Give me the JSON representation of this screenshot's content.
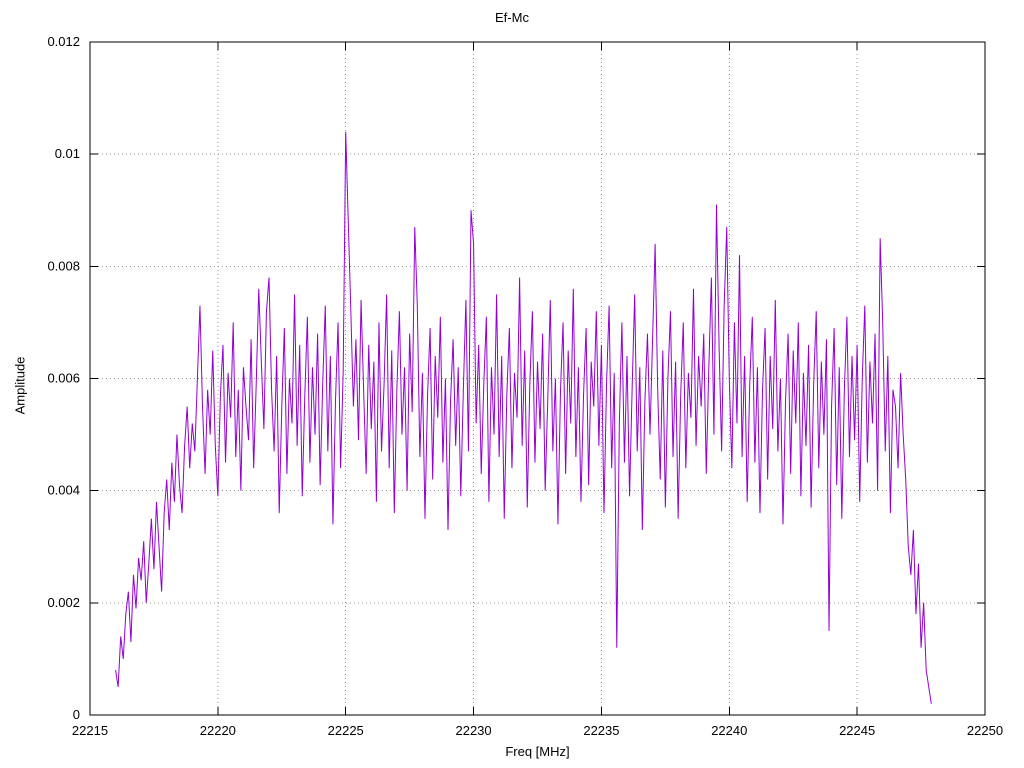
{
  "chart_data": {
    "type": "line",
    "title": "Ef-Mc",
    "xlabel": "Freq [MHz]",
    "ylabel": "Amplitude",
    "xlim": [
      22215,
      22250
    ],
    "ylim": [
      0,
      0.012
    ],
    "x_ticks": [
      22215,
      22220,
      22225,
      22230,
      22235,
      22240,
      22245,
      22250
    ],
    "x_tick_labels": [
      "22215",
      "22220",
      "22225",
      "22230",
      "22235",
      "22240",
      "22245",
      "22250"
    ],
    "y_ticks": [
      0,
      0.002,
      0.004,
      0.006,
      0.008,
      0.01,
      0.012
    ],
    "y_tick_labels": [
      "0",
      "0.002",
      "0.004",
      "0.006",
      "0.008",
      "0.01",
      "0.012"
    ],
    "grid": true,
    "legend_position": "none",
    "line_color": "#9400d3",
    "grid_color": "#999999",
    "border_color": "#000000",
    "series": [
      {
        "name": "Ef-Mc",
        "x_start": 22216.0,
        "x_step": 0.1,
        "y_scale": 0.0001,
        "y": [
          8,
          5,
          14,
          10,
          18,
          22,
          13,
          25,
          19,
          28,
          24,
          31,
          20,
          27,
          35,
          26,
          38,
          30,
          22,
          36,
          42,
          33,
          45,
          38,
          50,
          41,
          36,
          48,
          55,
          44,
          52,
          47,
          60,
          73,
          55,
          43,
          58,
          50,
          65,
          48,
          39,
          57,
          66,
          45,
          61,
          53,
          70,
          46,
          58,
          40,
          62,
          55,
          49,
          67,
          44,
          59,
          76,
          63,
          51,
          72,
          78,
          58,
          47,
          64,
          36,
          55,
          69,
          43,
          60,
          52,
          75,
          48,
          66,
          39,
          57,
          71,
          45,
          62,
          50,
          68,
          41,
          59,
          73,
          47,
          64,
          34,
          56,
          70,
          44,
          61,
          104,
          88,
          72,
          55,
          67,
          49,
          74,
          58,
          43,
          66,
          51,
          63,
          38,
          70,
          47,
          59,
          75,
          44,
          65,
          36,
          58,
          72,
          50,
          62,
          40,
          68,
          54,
          87,
          73,
          46,
          61,
          35,
          57,
          69,
          42,
          64,
          53,
          71,
          45,
          60,
          33,
          56,
          67,
          48,
          62,
          39,
          58,
          74,
          47,
          90,
          84,
          52,
          66,
          43,
          59,
          71,
          38,
          62,
          50,
          75,
          46,
          64,
          35,
          57,
          69,
          44,
          61,
          53,
          78,
          48,
          65,
          37,
          59,
          72,
          45,
          63,
          51,
          68,
          40,
          56,
          74,
          47,
          60,
          34,
          58,
          70,
          43,
          65,
          52,
          76,
          46,
          62,
          38,
          57,
          69,
          41,
          63,
          55,
          72,
          48,
          66,
          36,
          59,
          73,
          44,
          61,
          12,
          52,
          70,
          45,
          64,
          39,
          58,
          75,
          47,
          62,
          33,
          56,
          68,
          50,
          67,
          84,
          58,
          42,
          65,
          37,
          60,
          72,
          46,
          63,
          35,
          57,
          70,
          44,
          61,
          53,
          76,
          48,
          64,
          55,
          68,
          43,
          62,
          78,
          50,
          91,
          66,
          47,
          73,
          87,
          60,
          44,
          70,
          52,
          82,
          46,
          64,
          38,
          59,
          71,
          45,
          62,
          36,
          58,
          69,
          42,
          64,
          51,
          74,
          47,
          60,
          34,
          56,
          68,
          43,
          65,
          52,
          70,
          39,
          61,
          48,
          66,
          37,
          59,
          72,
          44,
          63,
          50,
          67,
          15,
          55,
          69,
          41,
          62,
          35,
          58,
          71,
          46,
          64,
          49,
          66,
          38,
          60,
          73,
          45,
          63,
          52,
          68,
          40,
          85,
          70,
          47,
          64,
          36,
          58,
          55,
          44,
          61,
          50,
          42,
          30,
          25,
          33,
          18,
          27,
          12,
          20,
          8,
          5,
          2
        ]
      }
    ]
  }
}
